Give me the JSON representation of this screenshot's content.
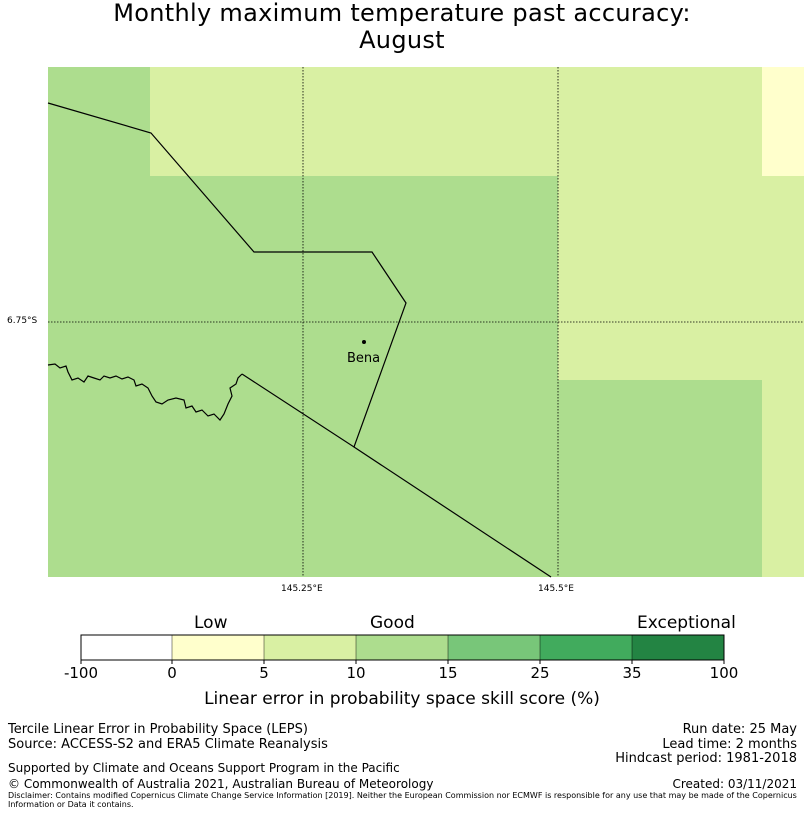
{
  "title_line1": "Monthly maximum temperature past accuracy:",
  "title_line2": "August",
  "map": {
    "lat_label": "6.75°S",
    "lon_labels": [
      "145.25°E",
      "145.5°E"
    ],
    "place_name": "Bena"
  },
  "legend": {
    "categories": [
      "Low",
      "Good",
      "Exceptional"
    ],
    "ticks": [
      "-100",
      "0",
      "5",
      "10",
      "15",
      "25",
      "35",
      "100"
    ],
    "colors": [
      "#ffffff",
      "#ffffcc",
      "#d9f0a3",
      "#addd8e",
      "#78c679",
      "#41ab5d",
      "#238443"
    ],
    "label": "Linear error in probability space skill score (%)"
  },
  "info": {
    "left1": "Tercile Linear Error in Probability Space (LEPS)",
    "left2": "Source: ACCESS-S2 and ERA5 Climate Reanalysis",
    "support": "Supported by Climate and Oceans Support Program in the Pacific",
    "copyright": "© Commonwealth of Australia 2021, Australian Bureau of Meteorology",
    "run_date": "Run date: 25 May",
    "lead_time": "Lead time: 2 months",
    "hindcast": "Hindcast period: 1981-2018",
    "created": "Created: 03/11/2021",
    "disclaimer": "Disclaimer: Contains modified Copernicus Climate Change Service Information [2019]. Neither the European Commission nor ECMWF is responsible for any use that may be made of the Copernicus Information or Data it contains."
  }
}
